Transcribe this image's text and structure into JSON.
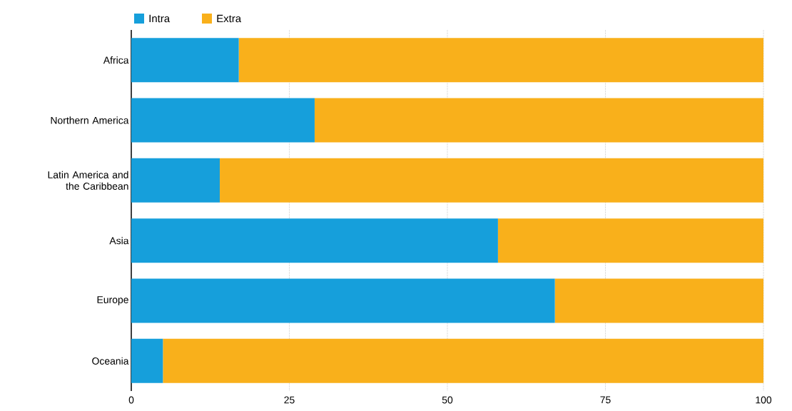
{
  "chart_data": {
    "type": "bar",
    "orientation": "horizontal",
    "stacked": true,
    "categories": [
      "Africa",
      "Northern America",
      "Latin America and the Caribbean",
      "Asia",
      "Europe",
      "Oceania"
    ],
    "series": [
      {
        "name": "Intra",
        "color": "#169fdb",
        "values": [
          17,
          29,
          14,
          58,
          67,
          5
        ]
      },
      {
        "name": "Extra",
        "color": "#f9b01b",
        "values": [
          83,
          71,
          86,
          42,
          33,
          95
        ]
      }
    ],
    "xlim": [
      0,
      100
    ],
    "xticks": [
      0,
      25,
      50,
      75,
      100
    ],
    "grid": "x",
    "legend": "top left"
  }
}
